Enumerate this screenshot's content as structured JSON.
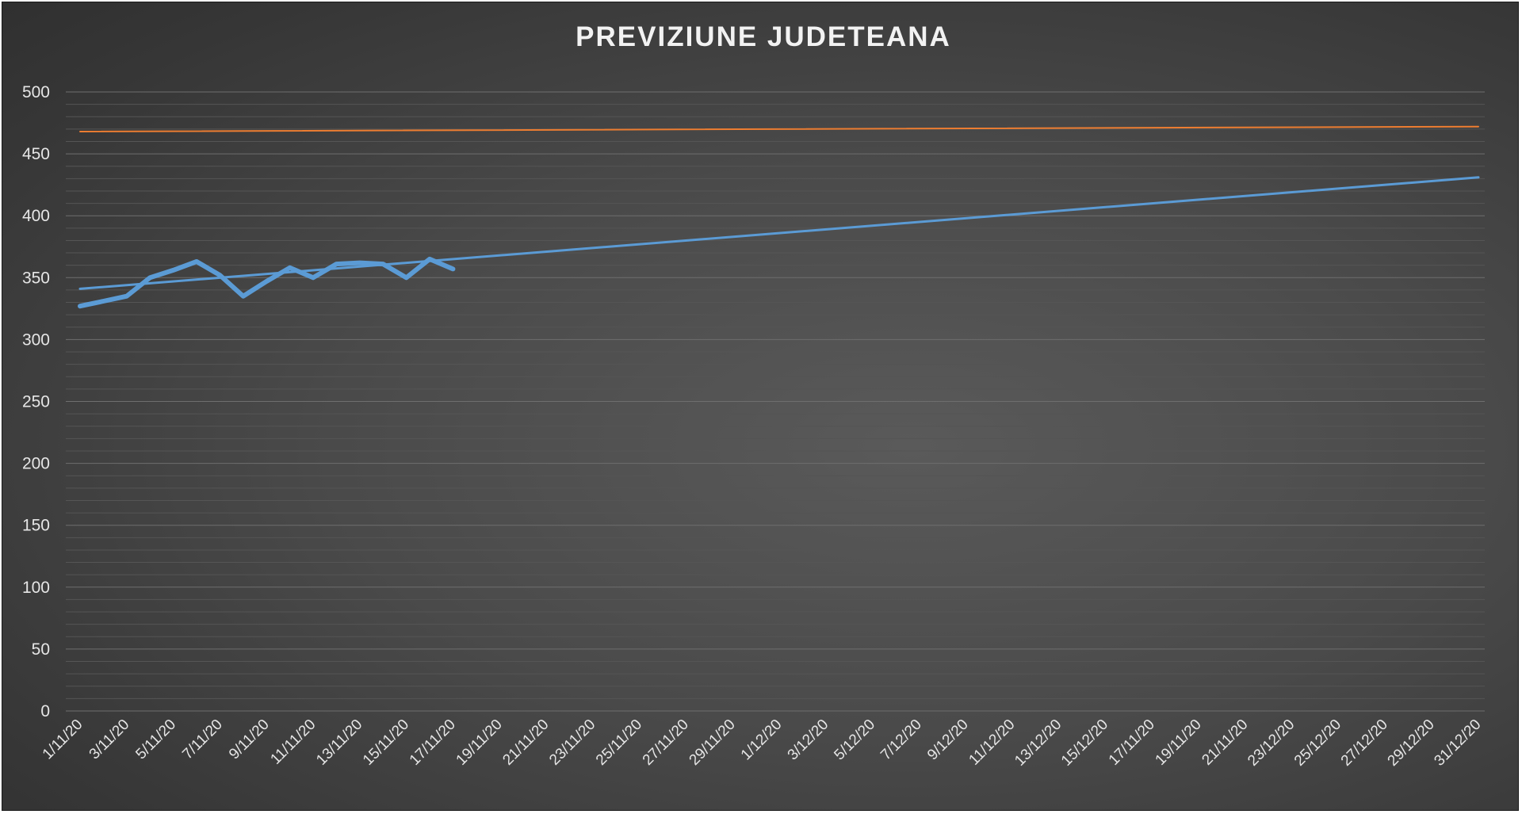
{
  "chart_data": {
    "type": "line",
    "title": "PREVIZIUNE JUDETEANA",
    "xlabel": "",
    "ylabel": "",
    "ylim": [
      0,
      500
    ],
    "yticks": [
      "0",
      "50",
      "100",
      "150",
      "200",
      "250",
      "300",
      "350",
      "400",
      "450",
      "500"
    ],
    "grid": true,
    "x_tick_labels": [
      "1/11/20",
      "3/11/20",
      "5/11/20",
      "7/11/20",
      "9/11/20",
      "11/11/20",
      "13/11/20",
      "15/11/20",
      "17/11/20",
      "19/11/20",
      "21/11/20",
      "23/11/20",
      "25/11/20",
      "27/11/20",
      "29/11/20",
      "1/12/20",
      "3/12/20",
      "5/12/20",
      "7/12/20",
      "9/12/20",
      "11/12/20",
      "13/12/20",
      "15/12/20",
      "17/11/20",
      "19/11/20",
      "21/11/20",
      "23/12/20",
      "25/12/20",
      "27/12/20",
      "29/12/20",
      "31/12/20"
    ],
    "x_range": [
      "2020-11-01",
      "2020-12-31"
    ],
    "series": [
      {
        "color": "#5b9bd5",
        "style": "thick",
        "points": [
          [
            "2020-11-01",
            327
          ],
          [
            "2020-11-02",
            331
          ],
          [
            "2020-11-03",
            335
          ],
          [
            "2020-11-04",
            350
          ],
          [
            "2020-11-05",
            356
          ],
          [
            "2020-11-06",
            363
          ],
          [
            "2020-11-07",
            352
          ],
          [
            "2020-11-08",
            335
          ],
          [
            "2020-11-09",
            347
          ],
          [
            "2020-11-10",
            358
          ],
          [
            "2020-11-11",
            350
          ],
          [
            "2020-11-12",
            361
          ],
          [
            "2020-11-13",
            362
          ],
          [
            "2020-11-14",
            361
          ],
          [
            "2020-11-15",
            350
          ],
          [
            "2020-11-16",
            365
          ],
          [
            "2020-11-17",
            357
          ]
        ]
      },
      {
        "color": "#5b9bd5",
        "style": "trend",
        "points": [
          [
            "2020-11-01",
            341
          ],
          [
            "2020-12-31",
            431
          ]
        ]
      },
      {
        "color": "#ed7d31",
        "style": "thin",
        "points": [
          [
            "2020-11-01",
            468
          ],
          [
            "2020-12-31",
            472
          ]
        ]
      }
    ]
  }
}
